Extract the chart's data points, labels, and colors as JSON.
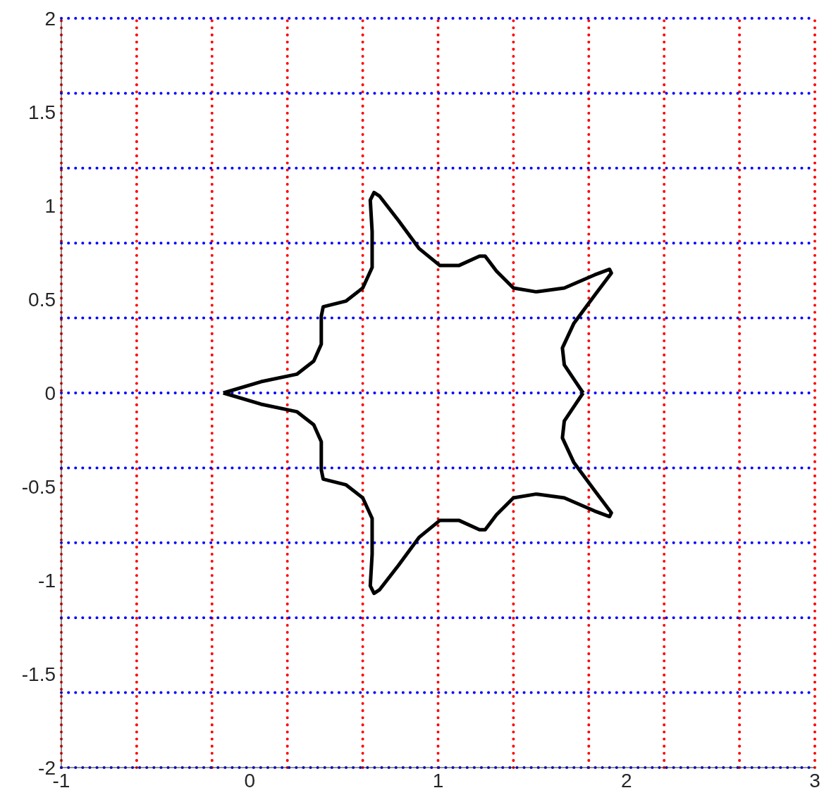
{
  "chart_data": {
    "type": "line",
    "xlim": [
      -1,
      3
    ],
    "ylim": [
      -2,
      2
    ],
    "xticks": [
      -1,
      0,
      1,
      2,
      3
    ],
    "yticks": [
      -2,
      -1.5,
      -1,
      -0.5,
      0,
      0.5,
      1,
      1.5,
      2
    ],
    "grid": false,
    "marker": "none",
    "line_style": "solid",
    "series": [
      {
        "color": "#000000",
        "x": [
          -0.14,
          0.06,
          0.25,
          0.34,
          0.38,
          0.38,
          0.39,
          0.51,
          0.6,
          0.65,
          0.65,
          0.64,
          0.66,
          0.69,
          0.79,
          0.9,
          1.01,
          1.11,
          1.22,
          1.25,
          1.31,
          1.4,
          1.52,
          1.67,
          1.83,
          1.91,
          1.92,
          1.83,
          1.72,
          1.66,
          1.67,
          1.73,
          1.77
        ],
        "values": [
          0,
          0.06,
          0.1,
          0.17,
          0.26,
          0.41,
          0.46,
          0.49,
          0.56,
          0.67,
          0.86,
          1.03,
          1.07,
          1.05,
          0.92,
          0.77,
          0.68,
          0.68,
          0.73,
          0.73,
          0.65,
          0.56,
          0.54,
          0.56,
          0.63,
          0.66,
          0.64,
          0.52,
          0.37,
          0.24,
          0.15,
          0.06,
          0
        ]
      },
      {
        "color": "#000000",
        "x": [
          -0.14,
          0.06,
          0.25,
          0.34,
          0.38,
          0.38,
          0.39,
          0.51,
          0.6,
          0.65,
          0.65,
          0.64,
          0.66,
          0.69,
          0.79,
          0.9,
          1.01,
          1.11,
          1.22,
          1.25,
          1.31,
          1.4,
          1.52,
          1.67,
          1.83,
          1.91,
          1.92,
          1.83,
          1.72,
          1.66,
          1.67,
          1.73,
          1.77
        ],
        "values": [
          0,
          -0.06,
          -0.1,
          -0.17,
          -0.26,
          -0.41,
          -0.46,
          -0.49,
          -0.56,
          -0.67,
          -0.86,
          -1.03,
          -1.07,
          -1.05,
          -0.92,
          -0.77,
          -0.68,
          -0.68,
          -0.73,
          -0.73,
          -0.65,
          -0.56,
          -0.54,
          -0.56,
          -0.63,
          -0.66,
          -0.64,
          -0.52,
          -0.37,
          -0.24,
          -0.15,
          -0.06,
          0
        ]
      }
    ],
    "ref_lines": [
      {
        "axis": "x",
        "value": -1,
        "color": "#ff0000",
        "line_style": "dotted"
      },
      {
        "axis": "x",
        "value": -0.6,
        "color": "#ff0000",
        "line_style": "dotted"
      },
      {
        "axis": "x",
        "value": -0.2,
        "color": "#ff0000",
        "line_style": "dotted"
      },
      {
        "axis": "x",
        "value": 0.2,
        "color": "#ff0000",
        "line_style": "dotted"
      },
      {
        "axis": "x",
        "value": 0.6,
        "color": "#ff0000",
        "line_style": "dotted"
      },
      {
        "axis": "x",
        "value": 1,
        "color": "#ff0000",
        "line_style": "dotted"
      },
      {
        "axis": "x",
        "value": 1.4,
        "color": "#ff0000",
        "line_style": "dotted"
      },
      {
        "axis": "x",
        "value": 1.8,
        "color": "#ff0000",
        "line_style": "dotted"
      },
      {
        "axis": "x",
        "value": 2.2,
        "color": "#ff0000",
        "line_style": "dotted"
      },
      {
        "axis": "x",
        "value": 2.6,
        "color": "#ff0000",
        "line_style": "dotted"
      },
      {
        "axis": "x",
        "value": 3,
        "color": "#ff0000",
        "line_style": "dotted"
      },
      {
        "axis": "y",
        "value": -2,
        "color": "#0000ff",
        "line_style": "dotted"
      },
      {
        "axis": "y",
        "value": -1.6,
        "color": "#0000ff",
        "line_style": "dotted"
      },
      {
        "axis": "y",
        "value": -1.2,
        "color": "#0000ff",
        "line_style": "dotted"
      },
      {
        "axis": "y",
        "value": -0.8,
        "color": "#0000ff",
        "line_style": "dotted"
      },
      {
        "axis": "y",
        "value": -0.4,
        "color": "#0000ff",
        "line_style": "dotted"
      },
      {
        "axis": "y",
        "value": 0,
        "color": "#0000ff",
        "line_style": "dotted"
      },
      {
        "axis": "y",
        "value": 0.4,
        "color": "#0000ff",
        "line_style": "dotted"
      },
      {
        "axis": "y",
        "value": 0.8,
        "color": "#0000ff",
        "line_style": "dotted"
      },
      {
        "axis": "y",
        "value": 1.2,
        "color": "#0000ff",
        "line_style": "dotted"
      },
      {
        "axis": "y",
        "value": 1.6,
        "color": "#0000ff",
        "line_style": "dotted"
      },
      {
        "axis": "y",
        "value": 2,
        "color": "#0000ff",
        "line_style": "dotted"
      }
    ]
  }
}
